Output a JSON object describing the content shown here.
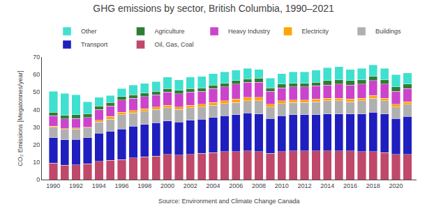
{
  "chart_data": {
    "type": "bar",
    "stacked": true,
    "title": "GHG emissions by sector, British Columbia, 1990–2021",
    "ylabel": "CO₂ Emissions [Megatonnes/year]",
    "annotations": [
      "Source: Environment and Climate Change Canada"
    ],
    "x": [
      1990,
      1991,
      1992,
      1993,
      1994,
      1995,
      1996,
      1997,
      1998,
      1999,
      2000,
      2001,
      2002,
      2003,
      2004,
      2005,
      2006,
      2007,
      2008,
      2009,
      2010,
      2011,
      2012,
      2013,
      2014,
      2015,
      2016,
      2017,
      2018,
      2019,
      2020,
      2021
    ],
    "series": [
      {
        "name": "Oil, Gas, Coal",
        "color": "#c0486a",
        "values": [
          9.5,
          8.2,
          8.5,
          9.0,
          10.5,
          11.0,
          11.5,
          12.5,
          13.0,
          13.5,
          14.5,
          14.0,
          14.5,
          15.0,
          15.5,
          16.0,
          16.0,
          16.5,
          16.0,
          15.0,
          16.0,
          16.5,
          16.5,
          16.5,
          16.5,
          16.5,
          16.5,
          16.0,
          16.0,
          15.5,
          14.5,
          14.5
        ]
      },
      {
        "name": "Transport",
        "color": "#1f1fbf",
        "values": [
          14.5,
          14.5,
          14.5,
          15.0,
          16.0,
          16.5,
          17.5,
          18.0,
          18.5,
          19.0,
          19.0,
          19.0,
          19.5,
          19.5,
          20.0,
          20.5,
          21.0,
          21.5,
          21.5,
          20.0,
          20.5,
          20.5,
          20.5,
          20.5,
          21.0,
          21.0,
          21.0,
          21.5,
          22.5,
          22.0,
          20.5,
          21.5
        ]
      },
      {
        "name": "Buildings",
        "color": "#b0b0b0",
        "values": [
          6.0,
          6.0,
          6.0,
          5.5,
          6.5,
          7.0,
          8.0,
          7.5,
          7.5,
          7.5,
          7.5,
          7.0,
          7.0,
          7.0,
          7.0,
          7.0,
          7.0,
          7.0,
          7.5,
          6.5,
          7.0,
          7.0,
          7.0,
          7.5,
          7.5,
          7.5,
          7.0,
          7.5,
          8.0,
          7.5,
          6.5,
          7.0
        ]
      },
      {
        "name": "Electricity",
        "color": "#ffa500",
        "values": [
          0.5,
          0.5,
          0.5,
          0.5,
          1.0,
          1.5,
          1.5,
          1.5,
          1.5,
          1.5,
          1.5,
          1.5,
          1.5,
          1.5,
          1.5,
          1.5,
          2.0,
          2.0,
          2.0,
          1.5,
          1.5,
          1.5,
          1.5,
          1.5,
          1.5,
          1.5,
          1.5,
          1.5,
          1.5,
          1.5,
          1.5,
          1.5
        ]
      },
      {
        "name": "Heavy Industry",
        "color": "#cc44cc",
        "values": [
          6.0,
          5.5,
          5.5,
          5.5,
          6.0,
          6.0,
          7.0,
          7.0,
          7.0,
          7.0,
          7.5,
          7.5,
          7.5,
          7.5,
          8.0,
          8.0,
          8.5,
          8.5,
          8.5,
          7.5,
          7.5,
          7.5,
          7.5,
          7.5,
          7.5,
          8.0,
          8.0,
          8.0,
          8.5,
          8.0,
          7.5,
          7.5
        ]
      },
      {
        "name": "Agriculture",
        "color": "#2e7d32",
        "values": [
          2.0,
          2.0,
          2.0,
          2.0,
          2.0,
          2.0,
          2.0,
          2.0,
          2.0,
          2.0,
          2.0,
          2.0,
          2.0,
          2.0,
          2.0,
          2.0,
          2.0,
          2.0,
          2.5,
          2.0,
          2.0,
          2.0,
          2.0,
          2.0,
          2.5,
          2.5,
          2.5,
          2.5,
          2.5,
          2.5,
          2.5,
          2.5
        ]
      },
      {
        "name": "Other",
        "color": "#40e0d0",
        "values": [
          12.0,
          12.5,
          11.5,
          7.0,
          5.0,
          4.0,
          4.5,
          5.5,
          5.5,
          5.5,
          6.5,
          6.0,
          6.5,
          6.5,
          6.5,
          6.5,
          6.0,
          6.0,
          5.0,
          5.5,
          6.0,
          6.5,
          6.5,
          7.0,
          7.5,
          7.5,
          6.5,
          6.5,
          6.5,
          6.5,
          7.0,
          6.5
        ]
      }
    ],
    "xlim": [
      1989.0,
      2021.8
    ],
    "xticks": [
      1990,
      1992,
      1994,
      1996,
      1998,
      2000,
      2002,
      2004,
      2006,
      2008,
      2010,
      2012,
      2014,
      2016,
      2018,
      2020
    ],
    "ylim": [
      0,
      70
    ],
    "yticks": [
      0,
      10,
      20,
      30,
      40,
      50,
      60,
      70
    ],
    "grid": false,
    "legend": "top"
  }
}
